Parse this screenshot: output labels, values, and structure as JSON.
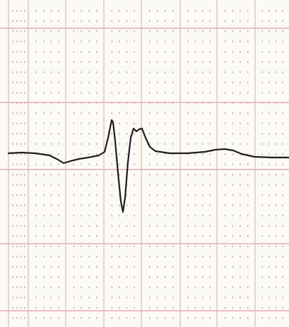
{
  "image": {
    "subject": "ecg-paper-strip",
    "colors": {
      "paper": "#fbfaf7",
      "grid_major_vertical": "#d8bfa0",
      "grid_major_horizontal": "#e6a9bd",
      "grid_dots": "#b08a96",
      "trace": "#1e1e1e"
    },
    "trace": {
      "kind": "single-waveform",
      "baseline_level": 0,
      "features": [
        "slight-dip",
        "sharp-upward-deflection",
        "deep-downward-deflection",
        "return-to-baseline",
        "broad-low-wave"
      ]
    }
  }
}
